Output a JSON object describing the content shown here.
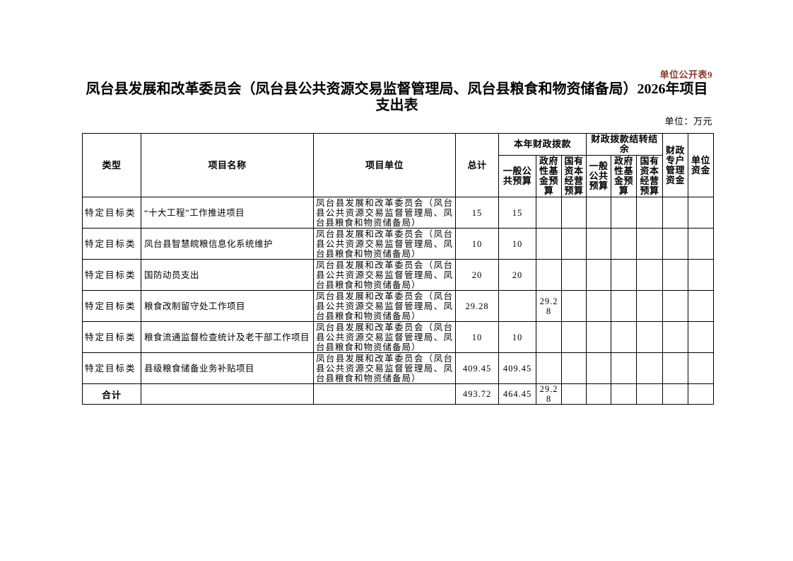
{
  "page": {
    "doc_label": "单位公开表9",
    "title": "凤台县发展和改革委员会（凤台县公共资源交易监督管理局、凤台县粮食和物资储备局）2026年项目支出表",
    "unit_note": "单位：万元"
  },
  "colors": {
    "doc_label_red": "#8B3A2E",
    "text": "#000000",
    "border": "#000000",
    "background": "#FFFFFF"
  },
  "table": {
    "header": {
      "type": "类型",
      "project_name": "项目名称",
      "project_unit": "项目单位",
      "total": "总计",
      "current_year_group": "本年财政拨款",
      "carryover_group": "财政拨款结转结余",
      "general_budget": "一般公共预算",
      "gov_fund_budget": "政府性基金预算",
      "state_capital_budget": "国有资本经营预算",
      "special_account": "财政专户管理资金",
      "unit_funds": "单位资金"
    },
    "rows": [
      {
        "type": "特定目标类",
        "name": "“十大工程”工作推进项目",
        "unit": "凤台县发展和改革委员会（凤台县公共资源交易监督管理局、凤台县粮食和物资储备局）",
        "total": "15",
        "current_general": "15",
        "current_gov_fund": "",
        "current_state_capital": "",
        "carry_general": "",
        "carry_gov_fund": "",
        "carry_state_capital": "",
        "special_account": "",
        "unit_funds": ""
      },
      {
        "type": "特定目标类",
        "name": "凤台县智慧皖粮信息化系统维护",
        "unit": "凤台县发展和改革委员会（凤台县公共资源交易监督管理局、凤台县粮食和物资储备局）",
        "total": "10",
        "current_general": "10",
        "current_gov_fund": "",
        "current_state_capital": "",
        "carry_general": "",
        "carry_gov_fund": "",
        "carry_state_capital": "",
        "special_account": "",
        "unit_funds": ""
      },
      {
        "type": "特定目标类",
        "name": "国防动员支出",
        "unit": "凤台县发展和改革委员会（凤台县公共资源交易监督管理局、凤台县粮食和物资储备局）",
        "total": "20",
        "current_general": "20",
        "current_gov_fund": "",
        "current_state_capital": "",
        "carry_general": "",
        "carry_gov_fund": "",
        "carry_state_capital": "",
        "special_account": "",
        "unit_funds": ""
      },
      {
        "type": "特定目标类",
        "name": "粮食改制留守处工作项目",
        "unit": "凤台县发展和改革委员会（凤台县公共资源交易监督管理局、凤台县粮食和物资储备局）",
        "total": "29.28",
        "current_general": "",
        "current_gov_fund": "29.28",
        "current_state_capital": "",
        "carry_general": "",
        "carry_gov_fund": "",
        "carry_state_capital": "",
        "special_account": "",
        "unit_funds": ""
      },
      {
        "type": "特定目标类",
        "name": "粮食流通监督检查统计及老干部工作项目",
        "unit": "凤台县发展和改革委员会（凤台县公共资源交易监督管理局、凤台县粮食和物资储备局）",
        "total": "10",
        "current_general": "10",
        "current_gov_fund": "",
        "current_state_capital": "",
        "carry_general": "",
        "carry_gov_fund": "",
        "carry_state_capital": "",
        "special_account": "",
        "unit_funds": ""
      },
      {
        "type": "特定目标类",
        "name": "县级粮食储备业务补贴项目",
        "unit": "凤台县发展和改革委员会（凤台县公共资源交易监督管理局、凤台县粮食和物资储备局）",
        "total": "409.45",
        "current_general": "409.45",
        "current_gov_fund": "",
        "current_state_capital": "",
        "carry_general": "",
        "carry_gov_fund": "",
        "carry_state_capital": "",
        "special_account": "",
        "unit_funds": ""
      }
    ],
    "total_row": {
      "label": "合计",
      "name": "",
      "unit": "",
      "total": "493.72",
      "current_general": "464.45",
      "current_gov_fund": "29.28",
      "current_state_capital": "",
      "carry_general": "",
      "carry_gov_fund": "",
      "carry_state_capital": "",
      "special_account": "",
      "unit_funds": ""
    }
  }
}
